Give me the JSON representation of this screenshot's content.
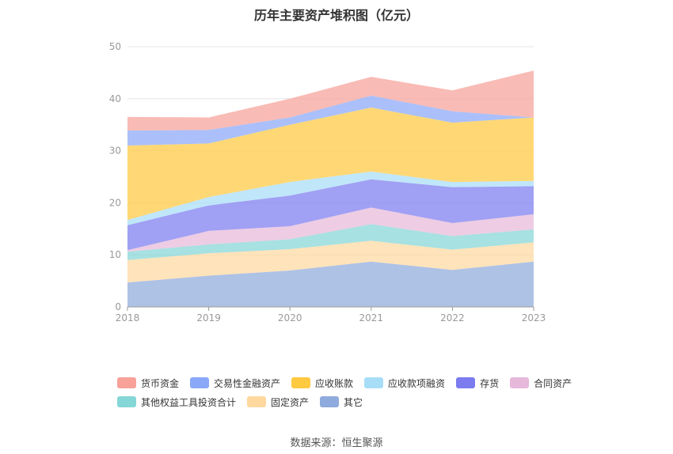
{
  "title": "历年主要资产堆积图（亿元）",
  "source": "数据来源：恒生聚源",
  "chart_data": {
    "type": "area",
    "stacked": true,
    "title": "历年主要资产堆积图（亿元）",
    "categories": [
      "2018",
      "2019",
      "2020",
      "2021",
      "2022",
      "2023"
    ],
    "ylim": [
      0,
      50
    ],
    "yticks": [
      0,
      10,
      20,
      30,
      40,
      50
    ],
    "grid": true,
    "legend_position": "bottom",
    "series": [
      {
        "name": "其它",
        "color": "#8FAADC",
        "values": [
          4.7,
          6.0,
          7.0,
          8.7,
          7.1,
          8.7
        ]
      },
      {
        "name": "固定资产",
        "color": "#FFD8A0",
        "values": [
          4.3,
          4.3,
          4.1,
          4.0,
          3.9,
          3.7
        ]
      },
      {
        "name": "其他权益工具投资合计",
        "color": "#85D6D6",
        "values": [
          1.6,
          1.7,
          1.9,
          3.2,
          2.6,
          2.5
        ]
      },
      {
        "name": "合同资产",
        "color": "#E6B8DA",
        "values": [
          0.3,
          2.6,
          2.5,
          3.2,
          2.5,
          2.9
        ]
      },
      {
        "name": "存货",
        "color": "#7C7CF0",
        "values": [
          4.8,
          4.9,
          5.9,
          5.4,
          6.9,
          5.4
        ]
      },
      {
        "name": "应收款项融资",
        "color": "#A8DDF8",
        "values": [
          1.0,
          1.6,
          2.6,
          1.5,
          1.0,
          1.0
        ]
      },
      {
        "name": "应收账款",
        "color": "#FFC940",
        "values": [
          14.3,
          10.3,
          11.0,
          12.3,
          11.4,
          12.2
        ]
      },
      {
        "name": "交易性金融资产",
        "color": "#8AA8F8",
        "values": [
          2.9,
          2.6,
          1.4,
          2.3,
          2.2,
          0.0
        ]
      },
      {
        "name": "货币资金",
        "color": "#F7A199",
        "values": [
          2.6,
          2.4,
          3.6,
          3.6,
          4.0,
          9.0
        ]
      }
    ]
  },
  "legend": {
    "rows": [
      [
        {
          "name": "货币资金",
          "color": "#F7A199"
        },
        {
          "name": "交易性金融资产",
          "color": "#8AA8F8"
        },
        {
          "name": "应收账款",
          "color": "#FFC940"
        },
        {
          "name": "应收款项融资",
          "color": "#A8DDF8"
        },
        {
          "name": "存货",
          "color": "#7C7CF0"
        },
        {
          "name": "合同资产",
          "color": "#E6B8DA"
        }
      ],
      [
        {
          "name": "其他权益工具投资合计",
          "color": "#85D6D6"
        },
        {
          "name": "固定资产",
          "color": "#FFD8A0"
        },
        {
          "name": "其它",
          "color": "#8FAADC"
        }
      ]
    ]
  }
}
